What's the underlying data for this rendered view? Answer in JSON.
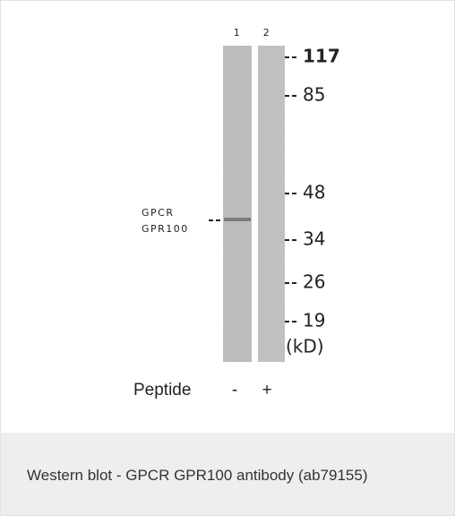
{
  "lanes": [
    "1",
    "2"
  ],
  "markers": [
    117,
    85,
    48,
    34,
    26,
    19
  ],
  "unit": "(kD)",
  "band_label": [
    "GPCR",
    "GPR100"
  ],
  "peptide": {
    "label": "Peptide",
    "signs": [
      "-",
      "+"
    ]
  },
  "caption": "Western blot - GPCR GPR100 antibody (ab79155)"
}
